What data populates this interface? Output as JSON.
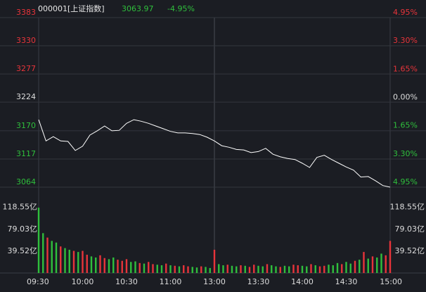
{
  "header": {
    "code": "000001[上证指数]",
    "last": "3063.97",
    "change": "-4.95%"
  },
  "chart_data": [
    {
      "type": "line",
      "color": "#ffffff",
      "up_color": "#e8343a",
      "down_color": "#2fbf3c",
      "flat_color": "#dddddd",
      "x": [
        0,
        5,
        10,
        15,
        20,
        25,
        30,
        35,
        40,
        45,
        50,
        55,
        60,
        65,
        70,
        75,
        80,
        85,
        90,
        95,
        100,
        105,
        110,
        115,
        120,
        125,
        130,
        135,
        140,
        145,
        150,
        155,
        160,
        165,
        170,
        175,
        180,
        185,
        190,
        195,
        200,
        205,
        210,
        215,
        220,
        225,
        230,
        235,
        240
      ],
      "values": [
        3191,
        3151,
        3159,
        3151,
        3150,
        3133,
        3141,
        3162,
        3170,
        3179,
        3170,
        3171,
        3184,
        3191,
        3188,
        3184,
        3179,
        3174,
        3169,
        3166,
        3166,
        3165,
        3163,
        3158,
        3151,
        3142,
        3139,
        3135,
        3134,
        3129,
        3131,
        3137,
        3126,
        3121,
        3118,
        3116,
        3109,
        3101,
        3120,
        3124,
        3116,
        3109,
        3102,
        3096,
        3083,
        3084,
        3076,
        3067,
        3063.97
      ],
      "xlim": [
        0,
        240
      ],
      "ylim": [
        3064,
        3383
      ],
      "yticks": [
        3383,
        3330,
        3277,
        3224,
        3170,
        3117,
        3064
      ],
      "y2lim": [
        -4.95,
        4.95
      ],
      "y2ticks": [
        {
          "value": 4.95,
          "label": "4.95%"
        },
        {
          "value": 3.3,
          "label": "3.30%"
        },
        {
          "value": 1.65,
          "label": "1.65%"
        },
        {
          "value": 0,
          "label": "0.00%"
        },
        {
          "value": -1.65,
          "label": "1.65%"
        },
        {
          "value": -3.3,
          "label": "3.30%"
        },
        {
          "value": -4.95,
          "label": "4.95%"
        }
      ],
      "grid": true
    },
    {
      "type": "bar",
      "up_color": "#e8343a",
      "down_color": "#2fbf3c",
      "label_color": "#dddddd",
      "x": [
        0,
        3,
        6,
        9,
        12,
        15,
        18,
        21,
        24,
        27,
        30,
        33,
        36,
        39,
        42,
        45,
        48,
        51,
        54,
        57,
        60,
        63,
        66,
        69,
        72,
        75,
        78,
        81,
        84,
        87,
        90,
        93,
        96,
        99,
        102,
        105,
        108,
        111,
        114,
        117,
        120,
        123,
        126,
        129,
        132,
        135,
        138,
        141,
        144,
        147,
        150,
        153,
        156,
        159,
        162,
        165,
        168,
        171,
        174,
        177,
        180,
        183,
        186,
        189,
        192,
        195,
        198,
        201,
        204,
        207,
        210,
        213,
        216,
        219,
        222,
        225,
        228,
        231,
        234,
        237,
        240
      ],
      "values": [
        118,
        72,
        64,
        58,
        55,
        48,
        45,
        42,
        40,
        38,
        40,
        33,
        30,
        28,
        32,
        27,
        25,
        28,
        24,
        22,
        25,
        20,
        21,
        18,
        17,
        20,
        16,
        15,
        14,
        17,
        14,
        13,
        12,
        14,
        12,
        11,
        10,
        12,
        11,
        9,
        42,
        16,
        14,
        15,
        13,
        12,
        14,
        13,
        11,
        15,
        13,
        12,
        16,
        14,
        12,
        11,
        13,
        12,
        15,
        14,
        13,
        12,
        16,
        14,
        12,
        13,
        15,
        14,
        18,
        16,
        20,
        17,
        22,
        24,
        38,
        26,
        30,
        28,
        35,
        32,
        58
      ],
      "up": [
        false,
        false,
        true,
        false,
        false,
        true,
        false,
        false,
        true,
        false,
        true,
        true,
        false,
        false,
        true,
        true,
        false,
        false,
        true,
        true,
        true,
        false,
        false,
        true,
        false,
        true,
        true,
        false,
        false,
        true,
        false,
        true,
        false,
        true,
        true,
        false,
        false,
        true,
        false,
        false,
        true,
        false,
        false,
        true,
        false,
        false,
        true,
        false,
        true,
        true,
        false,
        false,
        true,
        false,
        false,
        true,
        false,
        false,
        true,
        true,
        false,
        false,
        true,
        false,
        true,
        true,
        false,
        false,
        false,
        true,
        false,
        false,
        true,
        false,
        true,
        false,
        true,
        false,
        false,
        true,
        true
      ],
      "xlim": [
        0,
        240
      ],
      "xticks": [
        {
          "value": 0,
          "label": "09:30"
        },
        {
          "value": 30,
          "label": "10:00"
        },
        {
          "value": 60,
          "label": "10:30"
        },
        {
          "value": 90,
          "label": "11:00"
        },
        {
          "value": 120,
          "label": "13:00"
        },
        {
          "value": 150,
          "label": "13:30"
        },
        {
          "value": 180,
          "label": "14:00"
        },
        {
          "value": 210,
          "label": "14:30"
        },
        {
          "value": 240,
          "label": "15:00"
        }
      ],
      "ylim": [
        0,
        150
      ],
      "yticks": [
        {
          "value": 118.55,
          "label": "118.55亿"
        },
        {
          "value": 79.03,
          "label": "79.03亿"
        },
        {
          "value": 39.52,
          "label": "39.52亿"
        }
      ]
    }
  ]
}
